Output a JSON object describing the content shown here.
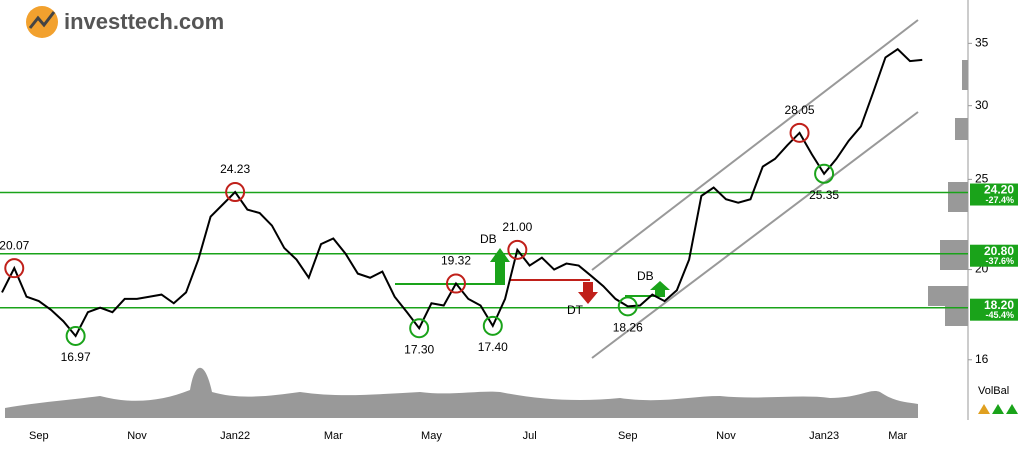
{
  "logo": {
    "text": "investtech.com"
  },
  "chart_data": {
    "type": "line",
    "scale": "log",
    "categories": [
      null,
      null,
      null,
      "Sep",
      null,
      null,
      null,
      null,
      null,
      null,
      null,
      "Nov",
      null,
      null,
      null,
      null,
      null,
      null,
      null,
      "Jan22",
      null,
      null,
      null,
      null,
      null,
      null,
      null,
      "Mar",
      null,
      null,
      null,
      null,
      null,
      null,
      null,
      "May",
      null,
      null,
      null,
      null,
      null,
      null,
      null,
      "Jul",
      null,
      null,
      null,
      null,
      null,
      null,
      null,
      "Sep",
      null,
      null,
      null,
      null,
      null,
      null,
      null,
      "Nov",
      null,
      null,
      null,
      null,
      null,
      null,
      null,
      "Jan23",
      null,
      null,
      null,
      null,
      null,
      "Mar",
      null,
      null
    ],
    "series": [
      {
        "color": "#000000",
        "values": [
          18.9,
          20.07,
          18.7,
          18.5,
          18.1,
          17.6,
          16.97,
          18.0,
          18.2,
          18.0,
          18.6,
          18.6,
          18.7,
          18.8,
          18.4,
          18.9,
          20.5,
          22.8,
          23.5,
          24.23,
          23.2,
          23.0,
          22.3,
          21.1,
          20.5,
          19.6,
          21.3,
          21.6,
          20.8,
          19.8,
          19.6,
          19.9,
          18.7,
          18.0,
          17.3,
          18.4,
          18.3,
          19.32,
          18.6,
          18.3,
          17.4,
          18.6,
          21.0,
          20.2,
          20.6,
          20.0,
          20.3,
          20.2,
          19.7,
          19.2,
          18.6,
          18.26,
          18.3,
          18.8,
          18.5,
          19.0,
          20.5,
          24.0,
          24.5,
          23.8,
          23.6,
          23.8,
          25.8,
          26.3,
          27.2,
          28.05,
          26.6,
          25.35,
          26.3,
          27.5,
          28.5,
          31.0,
          33.8,
          34.5,
          33.5,
          33.6
        ]
      }
    ],
    "ylim": [
      15.6,
      38.2
    ],
    "yticks": [
      16,
      20,
      25,
      30,
      35
    ],
    "annotations": [
      {
        "label": "20.07",
        "value": 20.07,
        "kind": "top"
      },
      {
        "label": "16.97",
        "value": 16.97,
        "kind": "bottom"
      },
      {
        "label": "24.23",
        "value": 24.23,
        "kind": "top"
      },
      {
        "label": "17.30",
        "value": 17.3,
        "kind": "bottom"
      },
      {
        "label": "19.32",
        "value": 19.32,
        "kind": "top"
      },
      {
        "label": "17.40",
        "value": 17.4,
        "kind": "bottom"
      },
      {
        "label": "21.00",
        "value": 21.0,
        "kind": "top"
      },
      {
        "label": "18.26",
        "value": 18.26,
        "kind": "bottom"
      },
      {
        "label": "28.05",
        "value": 28.05,
        "kind": "top"
      },
      {
        "label": "25.35",
        "value": 25.35,
        "kind": "bottom"
      }
    ],
    "levels": [
      {
        "value": {
          "value": 24.2,
          "label": "24.20"
        },
        "change": "-27.4%"
      },
      {
        "value": {
          "value": 20.8,
          "label": "20.80"
        },
        "change": "-37.6%"
      },
      {
        "value": {
          "value": 18.2,
          "label": "18.20"
        },
        "change": "-45.4%"
      }
    ],
    "signals": [
      {
        "label": "DB"
      },
      {
        "label": "DT"
      },
      {
        "label": "DB"
      }
    ],
    "volume_label": "VolBal"
  }
}
